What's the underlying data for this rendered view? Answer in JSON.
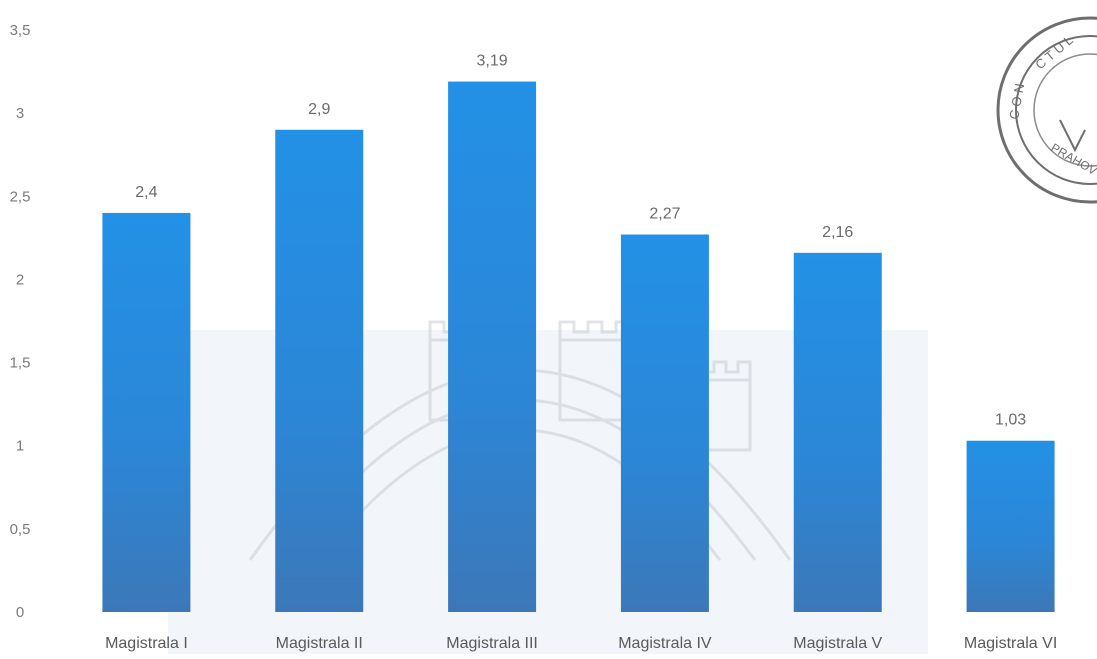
{
  "chart_data": {
    "type": "bar",
    "categories": [
      "Magistrala I",
      "Magistrala II",
      "Magistrala III",
      "Magistrala IV",
      "Magistrala V",
      "Magistrala VI"
    ],
    "values": [
      2.4,
      2.9,
      3.19,
      2.27,
      2.16,
      1.03
    ],
    "data_labels": [
      "2,4",
      "2,9",
      "3,19",
      "2,27",
      "2,16",
      "1,03"
    ],
    "y_ticks": [
      "0",
      "0,5",
      "1",
      "1,5",
      "2",
      "2,5",
      "3",
      "3,5"
    ],
    "y_tick_values": [
      0,
      0.5,
      1,
      1.5,
      2,
      2.5,
      3,
      3.5
    ],
    "ylim": [
      0,
      3.5
    ],
    "grid": false,
    "legend": "none",
    "bar_color": "#2b8ee0",
    "title": "",
    "xlabel": "",
    "ylabel": ""
  },
  "overlays": {
    "seal_text": "JUDEŢUL PRAHOVA CONSILIUL",
    "watermark": "coat-of-arms-watermark"
  }
}
